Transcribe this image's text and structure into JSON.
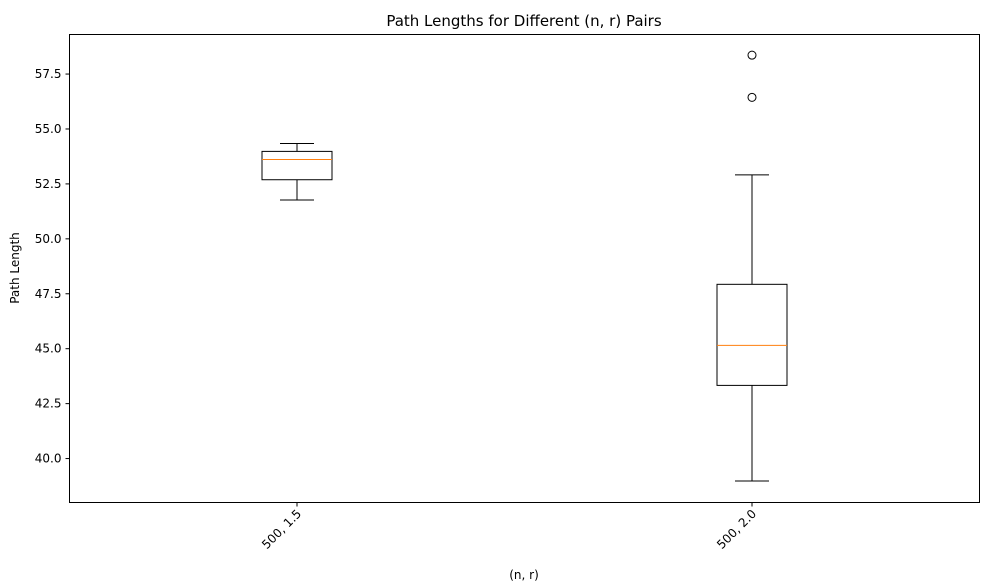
{
  "chart_data": {
    "type": "box",
    "title": "Path Lengths for Different (n, r) Pairs",
    "xlabel": "(n, r)",
    "ylabel": "Path Length",
    "categories": [
      "500, 1.5",
      "500, 2.0"
    ],
    "ylim": [
      38.0,
      59.3
    ],
    "yticks": [
      40.0,
      42.5,
      45.0,
      47.5,
      50.0,
      52.5,
      55.0,
      57.5
    ],
    "ytick_labels": [
      "40.0",
      "42.5",
      "45.0",
      "47.5",
      "50.0",
      "52.5",
      "55.0",
      "57.5"
    ],
    "boxes": [
      {
        "category": "500, 1.5",
        "whisker_low": 51.77,
        "q1": 52.69,
        "median": 53.61,
        "q3": 53.98,
        "whisker_high": 54.34,
        "outliers": []
      },
      {
        "category": "500, 2.0",
        "whisker_low": 38.98,
        "q1": 43.33,
        "median": 45.15,
        "q3": 47.93,
        "whisker_high": 52.91,
        "outliers": [
          58.36,
          56.44
        ]
      }
    ],
    "grid": false,
    "legend": "none",
    "colors": {
      "box": "#000000",
      "median": "#ff7f0e",
      "outlier_edge": "#000000",
      "outlier_fill": "#ffffff"
    }
  }
}
